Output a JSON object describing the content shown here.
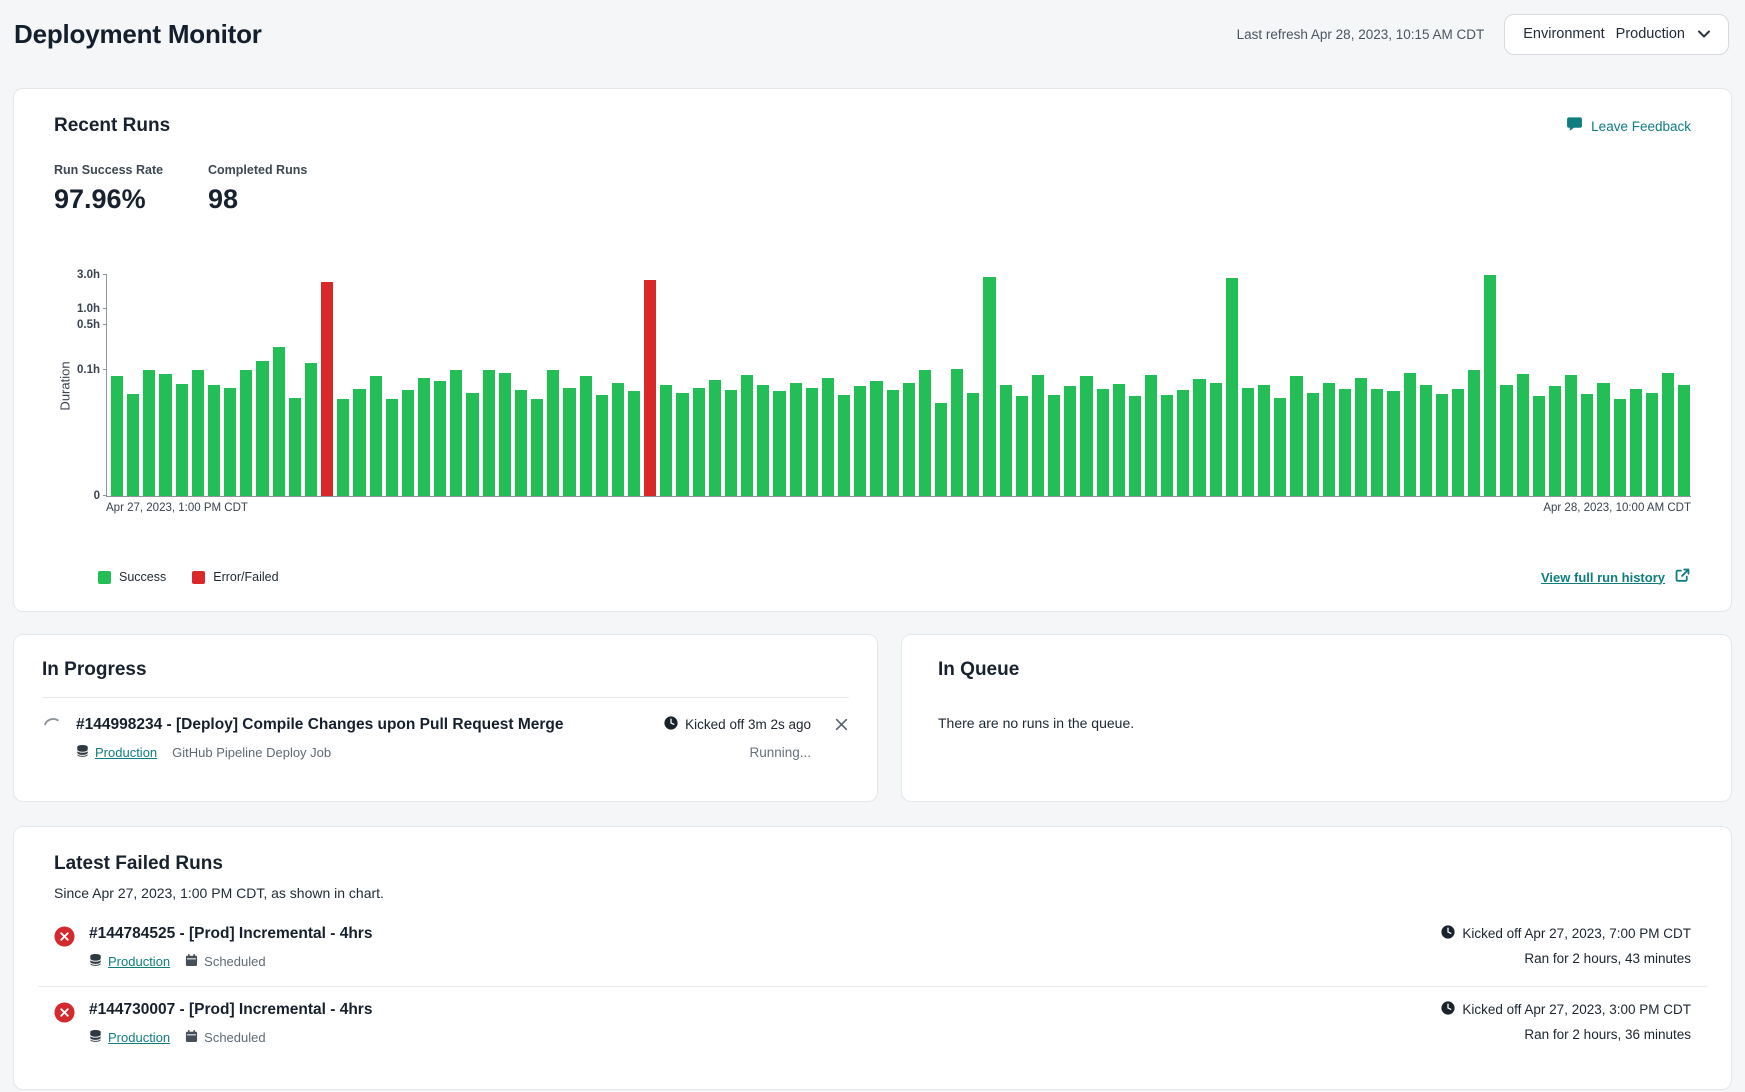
{
  "header": {
    "title": "Deployment Monitor",
    "last_refresh": "Last refresh Apr 28, 2023, 10:15 AM CDT",
    "environment": {
      "label": "Environment",
      "value": "Production"
    }
  },
  "recent_runs": {
    "title": "Recent Runs",
    "leave_feedback_label": "Leave Feedback",
    "stats": [
      {
        "label": "Run Success Rate",
        "value": "97.96%"
      },
      {
        "label": "Completed Runs",
        "value": "98"
      }
    ],
    "legend": [
      {
        "label": "Success",
        "color": "#23be55"
      },
      {
        "label": "Error/Failed",
        "color": "#d92828"
      }
    ],
    "view_history_label": "View full run history"
  },
  "chart_data": {
    "type": "bar",
    "ylabel": "Duration",
    "unit": "hours",
    "x_axis": {
      "start_label": "Apr 27, 2023, 1:00 PM CDT",
      "end_label": "Apr 28, 2023, 10:00 AM CDT"
    },
    "y_ticks": [
      {
        "label": "0",
        "value": 0
      },
      {
        "label": "0.1h",
        "value": 0.1
      },
      {
        "label": "0.5h",
        "value": 0.5
      },
      {
        "label": "1.0h",
        "value": 1.0
      },
      {
        "label": "3.0h",
        "value": 3.0
      }
    ],
    "y_scale_anchors": [
      [
        0,
        0
      ],
      [
        0.1,
        0.57
      ],
      [
        0.5,
        0.775
      ],
      [
        1.0,
        0.847
      ],
      [
        3.0,
        1.0
      ]
    ],
    "values": [
      0.095,
      0.081,
      0.1,
      0.097,
      0.089,
      0.1,
      0.088,
      0.086,
      0.101,
      0.18,
      0.3,
      0.078,
      0.16,
      2.6,
      0.077,
      0.085,
      0.095,
      0.077,
      0.084,
      0.094,
      0.091,
      0.1,
      0.082,
      0.1,
      0.098,
      0.084,
      0.077,
      0.1,
      0.086,
      0.095,
      0.08,
      0.09,
      0.083,
      2.72,
      0.088,
      0.082,
      0.086,
      0.092,
      0.084,
      0.096,
      0.088,
      0.083,
      0.09,
      0.086,
      0.094,
      0.08,
      0.087,
      0.091,
      0.084,
      0.09,
      0.1,
      0.074,
      0.105,
      0.082,
      2.9,
      0.088,
      0.079,
      0.096,
      0.08,
      0.087,
      0.095,
      0.085,
      0.089,
      0.079,
      0.096,
      0.08,
      0.084,
      0.093,
      0.09,
      2.85,
      0.086,
      0.088,
      0.078,
      0.095,
      0.082,
      0.09,
      0.085,
      0.094,
      0.085,
      0.083,
      0.098,
      0.088,
      0.081,
      0.085,
      0.1,
      3.0,
      0.088,
      0.097,
      0.079,
      0.087,
      0.096,
      0.081,
      0.09,
      0.077,
      0.085,
      0.082,
      0.098,
      0.088
    ],
    "failed_indices": [
      13,
      33
    ],
    "colors": {
      "success": "#23be55",
      "failed": "#d92828"
    }
  },
  "in_progress": {
    "title": "In Progress",
    "run": {
      "title": "#144998234 - [Deploy] Compile Changes upon Pull Request Merge",
      "environment_tag": "Production",
      "job_name": "GitHub Pipeline Deploy Job",
      "kicked_off": "Kicked off 3m 2s ago",
      "status": "Running..."
    }
  },
  "in_queue": {
    "title": "In Queue",
    "empty_message": "There are no runs in the queue."
  },
  "failed_runs": {
    "title": "Latest Failed Runs",
    "subtitle": "Since Apr 27, 2023, 1:00 PM CDT, as shown in chart.",
    "items": [
      {
        "title": "#144784525 - [Prod] Incremental - 4hrs",
        "environment_tag": "Production",
        "trigger": "Scheduled",
        "kicked_off": "Kicked off Apr 27, 2023, 7:00 PM CDT",
        "ran_for": "Ran for 2 hours, 43 minutes"
      },
      {
        "title": "#144730007 - [Prod] Incremental - 4hrs",
        "environment_tag": "Production",
        "trigger": "Scheduled",
        "kicked_off": "Kicked off Apr 27, 2023, 3:00 PM CDT",
        "ran_for": "Ran for 2 hours, 36 minutes"
      }
    ]
  }
}
